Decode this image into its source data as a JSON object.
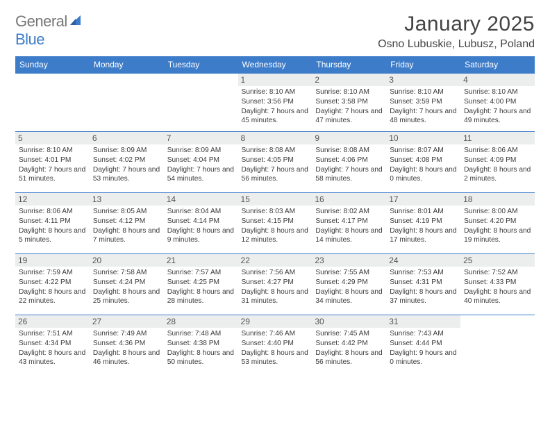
{
  "logo": {
    "textA": "General",
    "textB": "Blue"
  },
  "title": "January 2025",
  "location": "Osno Lubuskie, Lubusz, Poland",
  "colors": {
    "header_bg": "#3d7cc9",
    "header_fg": "#ffffff",
    "daynum_bg": "#eceded",
    "text": "#3a3a3a",
    "logo_gray": "#777777",
    "logo_blue": "#3d7cc9",
    "line": "#3d7cc9"
  },
  "day_names": [
    "Sunday",
    "Monday",
    "Tuesday",
    "Wednesday",
    "Thursday",
    "Friday",
    "Saturday"
  ],
  "labels": {
    "sunrise": "Sunrise:",
    "sunset": "Sunset:",
    "daylight": "Daylight:"
  },
  "weeks": [
    [
      {
        "n": "",
        "empty": true
      },
      {
        "n": "",
        "empty": true
      },
      {
        "n": "",
        "empty": true
      },
      {
        "n": "1",
        "sr": "8:10 AM",
        "ss": "3:56 PM",
        "dl": "7 hours and 45 minutes."
      },
      {
        "n": "2",
        "sr": "8:10 AM",
        "ss": "3:58 PM",
        "dl": "7 hours and 47 minutes."
      },
      {
        "n": "3",
        "sr": "8:10 AM",
        "ss": "3:59 PM",
        "dl": "7 hours and 48 minutes."
      },
      {
        "n": "4",
        "sr": "8:10 AM",
        "ss": "4:00 PM",
        "dl": "7 hours and 49 minutes."
      }
    ],
    [
      {
        "n": "5",
        "sr": "8:10 AM",
        "ss": "4:01 PM",
        "dl": "7 hours and 51 minutes."
      },
      {
        "n": "6",
        "sr": "8:09 AM",
        "ss": "4:02 PM",
        "dl": "7 hours and 53 minutes."
      },
      {
        "n": "7",
        "sr": "8:09 AM",
        "ss": "4:04 PM",
        "dl": "7 hours and 54 minutes."
      },
      {
        "n": "8",
        "sr": "8:08 AM",
        "ss": "4:05 PM",
        "dl": "7 hours and 56 minutes."
      },
      {
        "n": "9",
        "sr": "8:08 AM",
        "ss": "4:06 PM",
        "dl": "7 hours and 58 minutes."
      },
      {
        "n": "10",
        "sr": "8:07 AM",
        "ss": "4:08 PM",
        "dl": "8 hours and 0 minutes."
      },
      {
        "n": "11",
        "sr": "8:06 AM",
        "ss": "4:09 PM",
        "dl": "8 hours and 2 minutes."
      }
    ],
    [
      {
        "n": "12",
        "sr": "8:06 AM",
        "ss": "4:11 PM",
        "dl": "8 hours and 5 minutes."
      },
      {
        "n": "13",
        "sr": "8:05 AM",
        "ss": "4:12 PM",
        "dl": "8 hours and 7 minutes."
      },
      {
        "n": "14",
        "sr": "8:04 AM",
        "ss": "4:14 PM",
        "dl": "8 hours and 9 minutes."
      },
      {
        "n": "15",
        "sr": "8:03 AM",
        "ss": "4:15 PM",
        "dl": "8 hours and 12 minutes."
      },
      {
        "n": "16",
        "sr": "8:02 AM",
        "ss": "4:17 PM",
        "dl": "8 hours and 14 minutes."
      },
      {
        "n": "17",
        "sr": "8:01 AM",
        "ss": "4:19 PM",
        "dl": "8 hours and 17 minutes."
      },
      {
        "n": "18",
        "sr": "8:00 AM",
        "ss": "4:20 PM",
        "dl": "8 hours and 19 minutes."
      }
    ],
    [
      {
        "n": "19",
        "sr": "7:59 AM",
        "ss": "4:22 PM",
        "dl": "8 hours and 22 minutes."
      },
      {
        "n": "20",
        "sr": "7:58 AM",
        "ss": "4:24 PM",
        "dl": "8 hours and 25 minutes."
      },
      {
        "n": "21",
        "sr": "7:57 AM",
        "ss": "4:25 PM",
        "dl": "8 hours and 28 minutes."
      },
      {
        "n": "22",
        "sr": "7:56 AM",
        "ss": "4:27 PM",
        "dl": "8 hours and 31 minutes."
      },
      {
        "n": "23",
        "sr": "7:55 AM",
        "ss": "4:29 PM",
        "dl": "8 hours and 34 minutes."
      },
      {
        "n": "24",
        "sr": "7:53 AM",
        "ss": "4:31 PM",
        "dl": "8 hours and 37 minutes."
      },
      {
        "n": "25",
        "sr": "7:52 AM",
        "ss": "4:33 PM",
        "dl": "8 hours and 40 minutes."
      }
    ],
    [
      {
        "n": "26",
        "sr": "7:51 AM",
        "ss": "4:34 PM",
        "dl": "8 hours and 43 minutes."
      },
      {
        "n": "27",
        "sr": "7:49 AM",
        "ss": "4:36 PM",
        "dl": "8 hours and 46 minutes."
      },
      {
        "n": "28",
        "sr": "7:48 AM",
        "ss": "4:38 PM",
        "dl": "8 hours and 50 minutes."
      },
      {
        "n": "29",
        "sr": "7:46 AM",
        "ss": "4:40 PM",
        "dl": "8 hours and 53 minutes."
      },
      {
        "n": "30",
        "sr": "7:45 AM",
        "ss": "4:42 PM",
        "dl": "8 hours and 56 minutes."
      },
      {
        "n": "31",
        "sr": "7:43 AM",
        "ss": "4:44 PM",
        "dl": "9 hours and 0 minutes."
      },
      {
        "n": "",
        "empty": true
      }
    ]
  ]
}
